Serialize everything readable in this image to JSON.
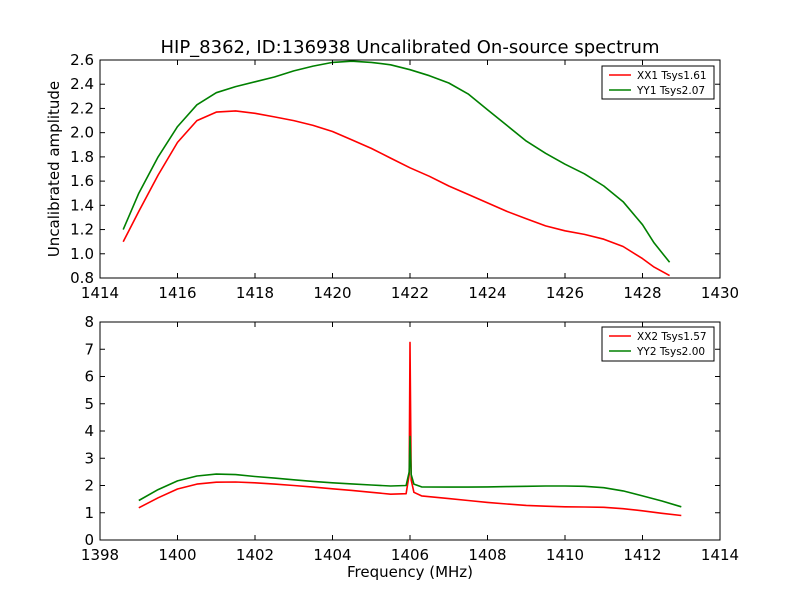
{
  "figure_title": "HIP_8362, ID:136938 Uncalibrated On-source spectrum",
  "colors": {
    "XX": "#ff0000",
    "YY": "#008000"
  },
  "chart_data": [
    {
      "type": "line",
      "title": "HIP_8362, ID:136938 Uncalibrated On-source spectrum",
      "xlabel": "",
      "ylabel": "Uncalibrated amplitude",
      "xlim": [
        1414,
        1430
      ],
      "ylim": [
        0.8,
        2.6
      ],
      "x_ticks": [
        "1414",
        "1416",
        "1418",
        "1420",
        "1422",
        "1424",
        "1426",
        "1428",
        "1430"
      ],
      "y_ticks": [
        "0.8",
        "1.0",
        "1.2",
        "1.4",
        "1.6",
        "1.8",
        "2.0",
        "2.2",
        "2.4",
        "2.6"
      ],
      "grid": false,
      "legend_position": "top-right",
      "series": [
        {
          "name": "XX1 Tsys1.61",
          "color": "#ff0000",
          "x": [
            1414.6,
            1415.0,
            1415.5,
            1416.0,
            1416.5,
            1417.0,
            1417.5,
            1418.0,
            1418.5,
            1419.0,
            1419.5,
            1420.0,
            1420.5,
            1421.0,
            1421.5,
            1422.0,
            1422.5,
            1423.0,
            1423.5,
            1424.0,
            1424.5,
            1425.0,
            1425.5,
            1426.0,
            1426.5,
            1427.0,
            1427.5,
            1428.0,
            1428.3,
            1428.7
          ],
          "y": [
            1.1,
            1.35,
            1.65,
            1.92,
            2.1,
            2.17,
            2.18,
            2.16,
            2.13,
            2.1,
            2.06,
            2.01,
            1.94,
            1.87,
            1.79,
            1.71,
            1.64,
            1.56,
            1.49,
            1.42,
            1.35,
            1.29,
            1.23,
            1.19,
            1.16,
            1.12,
            1.06,
            0.96,
            0.89,
            0.82
          ]
        },
        {
          "name": "YY1 Tsys2.07",
          "color": "#008000",
          "x": [
            1414.6,
            1415.0,
            1415.5,
            1416.0,
            1416.5,
            1417.0,
            1417.5,
            1418.0,
            1418.5,
            1419.0,
            1419.5,
            1420.0,
            1420.5,
            1421.0,
            1421.5,
            1422.0,
            1422.5,
            1423.0,
            1423.5,
            1424.0,
            1424.5,
            1425.0,
            1425.5,
            1426.0,
            1426.5,
            1427.0,
            1427.5,
            1428.0,
            1428.3,
            1428.7
          ],
          "y": [
            1.2,
            1.5,
            1.8,
            2.05,
            2.23,
            2.33,
            2.38,
            2.42,
            2.46,
            2.51,
            2.55,
            2.58,
            2.59,
            2.58,
            2.56,
            2.52,
            2.47,
            2.41,
            2.32,
            2.19,
            2.06,
            1.93,
            1.83,
            1.74,
            1.66,
            1.56,
            1.43,
            1.24,
            1.09,
            0.93
          ]
        }
      ]
    },
    {
      "type": "line",
      "title": "",
      "xlabel": "Frequency (MHz)",
      "ylabel": "",
      "xlim": [
        1398,
        1414
      ],
      "ylim": [
        0,
        8
      ],
      "x_ticks": [
        "1398",
        "1400",
        "1402",
        "1404",
        "1406",
        "1408",
        "1410",
        "1412",
        "1414"
      ],
      "y_ticks": [
        "0",
        "1",
        "2",
        "3",
        "4",
        "5",
        "6",
        "7",
        "8"
      ],
      "grid": false,
      "legend_position": "top-right",
      "series": [
        {
          "name": "XX2 Tsys1.57",
          "color": "#ff0000",
          "x": [
            1399.0,
            1399.5,
            1400.0,
            1400.5,
            1401.0,
            1401.5,
            1402.0,
            1402.5,
            1403.0,
            1403.5,
            1404.0,
            1404.5,
            1405.0,
            1405.5,
            1405.9,
            1405.98,
            1406.0,
            1406.03,
            1406.1,
            1406.3,
            1407.0,
            1407.5,
            1408.0,
            1408.5,
            1409.0,
            1409.5,
            1410.0,
            1410.5,
            1411.0,
            1411.5,
            1412.0,
            1412.5,
            1413.0
          ],
          "y": [
            1.18,
            1.55,
            1.87,
            2.05,
            2.12,
            2.13,
            2.1,
            2.05,
            2.0,
            1.94,
            1.88,
            1.82,
            1.75,
            1.68,
            1.7,
            2.4,
            7.25,
            2.2,
            1.75,
            1.62,
            1.52,
            1.45,
            1.38,
            1.32,
            1.27,
            1.24,
            1.22,
            1.21,
            1.2,
            1.15,
            1.07,
            0.98,
            0.9
          ]
        },
        {
          "name": "YY2 Tsys2.00",
          "color": "#008000",
          "x": [
            1399.0,
            1399.5,
            1400.0,
            1400.5,
            1401.0,
            1401.5,
            1402.0,
            1402.5,
            1403.0,
            1403.5,
            1404.0,
            1404.5,
            1405.0,
            1405.5,
            1405.9,
            1405.98,
            1406.0,
            1406.03,
            1406.1,
            1406.3,
            1407.0,
            1407.5,
            1408.0,
            1408.5,
            1409.0,
            1409.5,
            1410.0,
            1410.5,
            1411.0,
            1411.5,
            1412.0,
            1412.5,
            1413.0
          ],
          "y": [
            1.45,
            1.85,
            2.17,
            2.35,
            2.42,
            2.4,
            2.33,
            2.27,
            2.21,
            2.15,
            2.1,
            2.06,
            2.02,
            1.98,
            2.0,
            2.5,
            3.8,
            2.4,
            2.05,
            1.95,
            1.94,
            1.94,
            1.95,
            1.96,
            1.97,
            1.98,
            1.98,
            1.97,
            1.92,
            1.8,
            1.62,
            1.43,
            1.22
          ]
        }
      ]
    }
  ]
}
